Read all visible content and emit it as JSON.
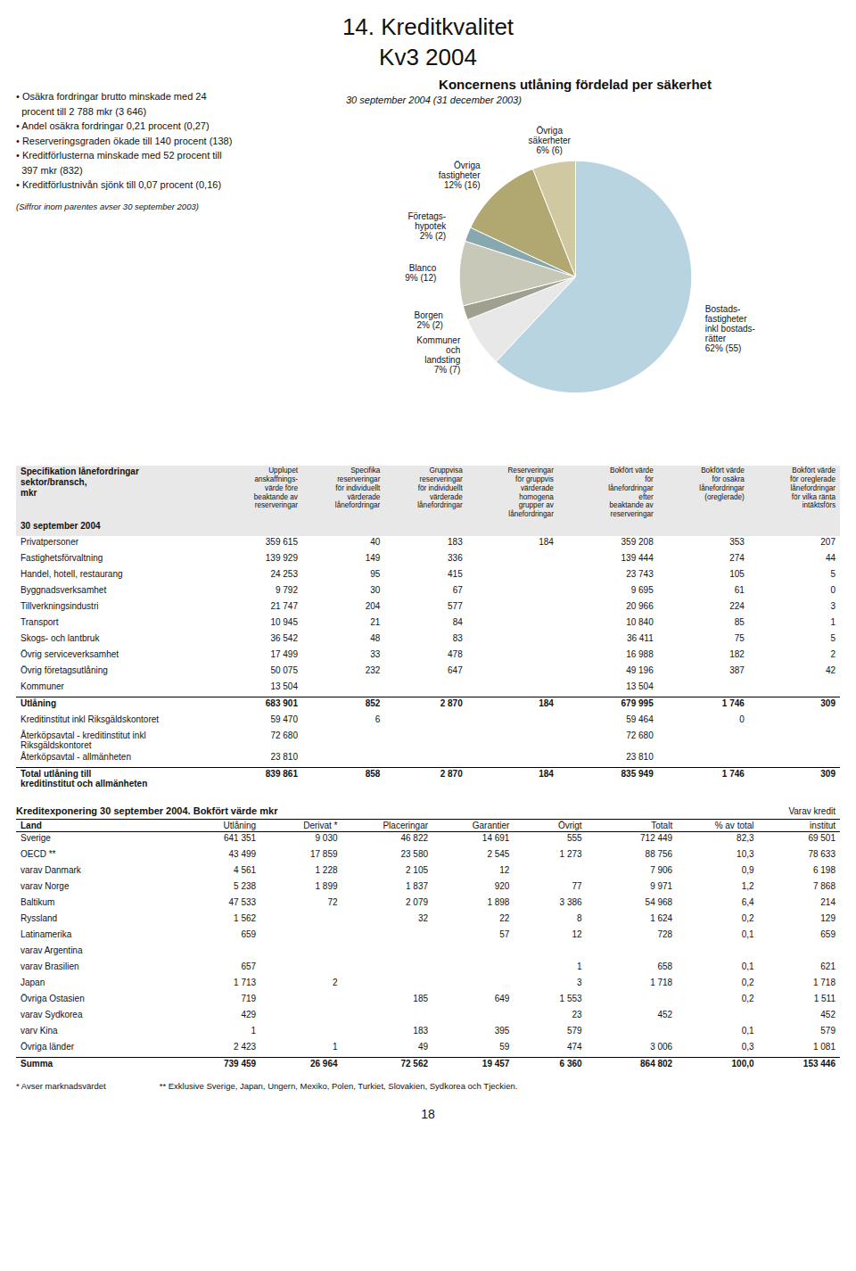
{
  "page_title": "14. Kreditkvalitet\nKv3 2004",
  "bullets": [
    "• Osäkra fordringar brutto minskade med 24\n  procent till 2 788 mkr (3 646)",
    "• Andel osäkra fordringar 0,21 procent (0,27)",
    "• Reserveringsgraden ökade till 140 procent (138)",
    "• Kreditförlusterna minskade med 52 procent till\n  397 mkr (832)",
    "• Kreditförlustnivån sjönk till 0,07 procent (0,16)"
  ],
  "bullets_note": "(Siffror inom parentes avser 30 september 2003)",
  "chart_data": {
    "type": "pie",
    "title": "Koncernens utlåning fördelad per säkerhet",
    "subtitle": "30 september 2004 (31 december 2003)",
    "categories": [
      "Bostads-\nfastigheter\ninkl bostads-\nrätter\n62% (55)",
      "Kommuner\noch\nlandsting\n7% (7)",
      "Borgen\n2% (2)",
      "Blanco\n9% (12)",
      "Företags-\nhypotek\n2% (2)",
      "Övriga\nfastigheter\n12% (16)",
      "Övriga\nsäkerheter\n6% (6)"
    ],
    "values": [
      62,
      7,
      2,
      9,
      2,
      12,
      6
    ],
    "colors": [
      "#b8d4e0",
      "#e8e8e8",
      "#a0a090",
      "#c8c8b8",
      "#88a8b0",
      "#b0a870",
      "#d0c8a0"
    ]
  },
  "table1": {
    "title": "Specifikation lånefordringar\nsektor/bransch,\nmkr",
    "col_headers": [
      "Upplupet\nanskaffnings-\nvärde före\nbeaktande av\nreserveringar",
      "Specifika\nreserveringar\nför individuellt\nvärderade\nlånefordringar",
      "Gruppvisa\nreserveringar\nför individuellt\nvärderade\nlånefordringar",
      "Reserveringar\nför gruppvis\nvärderade\nhomogena\ngrupper av\nlånefordringar",
      "Bokfört värde\nför\nlånefordringar\nefter\nbeaktande av\nreserveringar",
      "Bokfört värde\nför osäkra\nlånefordringar\n(oreglerade)",
      "Bokfört värde\nför oreglerade\nlånefordringar\nför vilka ränta\nintäktsförs"
    ],
    "date_label": "30 september 2004",
    "rows": [
      [
        "Privatpersoner",
        "359 615",
        "40",
        "183",
        "184",
        "359 208",
        "353",
        "207"
      ],
      [
        "Fastighetsförvaltning",
        "139 929",
        "149",
        "336",
        null,
        "139 444",
        "274",
        "44"
      ],
      [
        "Handel, hotell, restaurang",
        "24 253",
        "95",
        "415",
        null,
        "23 743",
        "105",
        "5"
      ],
      [
        "Byggnadsverksamhet",
        "9 792",
        "30",
        "67",
        null,
        "9 695",
        "61",
        "0"
      ],
      [
        "Tillverkningsindustri",
        "21 747",
        "204",
        "577",
        null,
        "20 966",
        "224",
        "3"
      ],
      [
        "Transport",
        "10 945",
        "21",
        "84",
        null,
        "10 840",
        "85",
        "1"
      ],
      [
        "Skogs- och lantbruk",
        "36 542",
        "48",
        "83",
        null,
        "36 411",
        "75",
        "5"
      ],
      [
        "Övrig serviceverksamhet",
        "17 499",
        "33",
        "478",
        null,
        "16 988",
        "182",
        "2"
      ],
      [
        "Övrig företagsutlåning",
        "50 075",
        "232",
        "647",
        null,
        "49 196",
        "387",
        "42"
      ],
      [
        "Kommuner",
        "13 504",
        null,
        null,
        null,
        "13 504",
        null,
        null
      ]
    ],
    "total_row": [
      "Utlåning",
      "683 901",
      "852",
      "2 870",
      "184",
      "679 995",
      "1 746",
      "309"
    ],
    "extra_rows": [
      [
        "Kreditinstitut inkl Riksgäldskontoret",
        "59 470",
        "6",
        null,
        null,
        "59 464",
        "0",
        null
      ],
      [
        "Återköpsavtal - kreditinstitut inkl Riksgäldskontoret",
        "72 680",
        null,
        null,
        null,
        "72 680",
        null,
        null
      ],
      [
        "Återköpsavtal - allmänheten",
        "23 810",
        null,
        null,
        null,
        "23 810",
        null,
        null
      ]
    ],
    "bold_total": [
      "Total utlåning till\nkreditinstitut och allmänheten",
      "839 861",
      "858",
      "2 870",
      "184",
      "835 949",
      "1 746",
      "309"
    ]
  },
  "table2": {
    "title": "Kreditexponering 30 september 2004. Bokfört värde mkr",
    "right_title": "Varav kredit",
    "col_headers": [
      "Land",
      "Utlåning",
      "Derivat *",
      "Placeringar",
      "Garantier",
      "Övrigt",
      "Totalt",
      "% av total",
      "institut"
    ],
    "rows": [
      [
        "Sverige",
        "641 351",
        "9 030",
        "46 822",
        "14 691",
        "555",
        "712 449",
        "82,3",
        "69 501"
      ],
      [
        "OECD **",
        "43 499",
        "17 859",
        "23 580",
        "2 545",
        "1 273",
        "88 756",
        "10,3",
        "78 633"
      ],
      [
        "varav Danmark",
        "4 561",
        "1 228",
        "2 105",
        "12",
        null,
        "7 906",
        "0,9",
        "6 198"
      ],
      [
        "varav Norge",
        "5 238",
        "1 899",
        "1 837",
        "920",
        "77",
        "9 971",
        "1,2",
        "7 868"
      ],
      [
        "Baltikum",
        "47 533",
        "72",
        "2 079",
        "1 898",
        "3 386",
        "54 968",
        "6,4",
        "214"
      ],
      [
        "Ryssland",
        "1 562",
        null,
        "32",
        "22",
        "8",
        "1 624",
        "0,2",
        "129"
      ],
      [
        "Latinamerika",
        "659",
        null,
        null,
        "57",
        "12",
        "728",
        "0,1",
        "659"
      ],
      [
        "varav Argentina",
        null,
        null,
        null,
        null,
        null,
        null,
        null,
        null
      ],
      [
        "varav Brasilien",
        "657",
        null,
        null,
        null,
        "1",
        "658",
        "0,1",
        "621"
      ],
      [
        "Japan",
        "1 713",
        "2",
        null,
        null,
        "3",
        "1 718",
        "0,2",
        "1 718"
      ],
      [
        "Övriga Ostasien",
        "719",
        null,
        "185",
        "649",
        "1 553",
        null,
        "0,2",
        "1 511"
      ],
      [
        "varav Sydkorea",
        "429",
        null,
        null,
        null,
        "23",
        "452",
        null,
        "452"
      ],
      [
        "varv Kina",
        "1",
        null,
        "183",
        "395",
        "579",
        null,
        "0,1",
        "579"
      ],
      [
        "Övriga länder",
        "2 423",
        "1",
        "49",
        "59",
        "474",
        "3 006",
        "0,3",
        "1 081"
      ],
      [
        "Summa",
        "739 459",
        "26 964",
        "72 562",
        "19 457",
        "6 360",
        "864 802",
        "100,0",
        "153 446"
      ]
    ],
    "footnotes": [
      "* Avser marknadsvärdet",
      "** Exklusive Sverige, Japan, Ungern, Mexiko, Polen, Turkiet, Slovakien, Sydkorea och Tjeckien."
    ]
  },
  "page_number": "18"
}
